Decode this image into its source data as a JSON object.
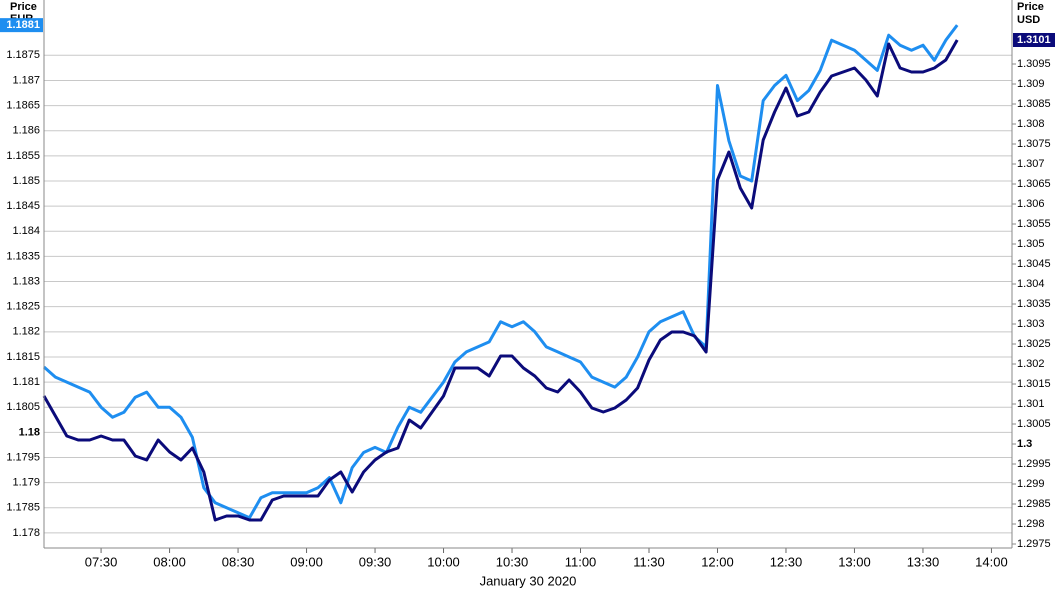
{
  "chart_data": {
    "type": "line",
    "ylabel": "Price",
    "yunit": "EUR",
    "y2label": "Price",
    "y2unit": "USD",
    "xlabel": "January 30 2020",
    "x": [
      "07:05",
      "07:10",
      "07:15",
      "07:20",
      "07:25",
      "07:30",
      "07:35",
      "07:40",
      "07:45",
      "07:50",
      "07:55",
      "08:00",
      "08:05",
      "08:10",
      "08:15",
      "08:20",
      "08:25",
      "08:30",
      "08:35",
      "08:40",
      "08:45",
      "08:50",
      "08:55",
      "09:00",
      "09:05",
      "09:10",
      "09:15",
      "09:20",
      "09:25",
      "09:30",
      "09:35",
      "09:40",
      "09:45",
      "09:50",
      "09:55",
      "10:00",
      "10:05",
      "10:10",
      "10:15",
      "10:20",
      "10:25",
      "10:30",
      "10:35",
      "10:40",
      "10:45",
      "10:50",
      "10:55",
      "11:00",
      "11:05",
      "11:10",
      "11:15",
      "11:20",
      "11:25",
      "11:30",
      "11:35",
      "11:40",
      "11:45",
      "11:50",
      "11:55",
      "12:00",
      "12:05",
      "12:10",
      "12:15",
      "12:20",
      "12:25",
      "12:30",
      "12:35",
      "12:40",
      "12:45",
      "12:50",
      "12:55",
      "13:00",
      "13:05",
      "13:10",
      "13:15",
      "13:20",
      "13:25",
      "13:30",
      "13:35",
      "13:40",
      "13:45"
    ],
    "xlim": [
      "07:05",
      "14:09"
    ],
    "xticks": [
      "07:30",
      "08:00",
      "08:30",
      "09:00",
      "09:30",
      "10:00",
      "10:30",
      "11:00",
      "11:30",
      "12:00",
      "12:30",
      "13:00",
      "13:30",
      "14:00"
    ],
    "series": [
      {
        "color": "#1e8ef0",
        "axis": "y",
        "values": [
          1.1813,
          1.1811,
          1.181,
          1.1809,
          1.1808,
          1.1805,
          1.1803,
          1.1804,
          1.1807,
          1.1808,
          1.1805,
          1.1805,
          1.1803,
          1.1799,
          1.1789,
          1.1786,
          1.1785,
          1.1784,
          1.1783,
          1.1787,
          1.1788,
          1.1788,
          1.1788,
          1.1788,
          1.1789,
          1.1791,
          1.1786,
          1.1793,
          1.1796,
          1.1797,
          1.1796,
          1.1801,
          1.1805,
          1.1804,
          1.1807,
          1.181,
          1.1814,
          1.1816,
          1.1817,
          1.1818,
          1.1822,
          1.1821,
          1.1822,
          1.182,
          1.1817,
          1.1816,
          1.1815,
          1.1814,
          1.1811,
          1.181,
          1.1809,
          1.1811,
          1.1815,
          1.182,
          1.1822,
          1.1823,
          1.1824,
          1.1819,
          1.1817,
          1.1869,
          1.1858,
          1.1851,
          1.185,
          1.1866,
          1.1869,
          1.1871,
          1.1866,
          1.1868,
          1.1872,
          1.1878,
          1.1877,
          1.1876,
          1.1874,
          1.1872,
          1.1879,
          1.1877,
          1.1876,
          1.1877,
          1.1874,
          1.1878,
          1.1881
        ]
      },
      {
        "color": "#0b0b7a",
        "axis": "y2",
        "values": [
          1.3012,
          1.3007,
          1.3002,
          1.3001,
          1.3001,
          1.3002,
          1.3001,
          1.3001,
          1.2997,
          1.2996,
          1.3001,
          1.2998,
          1.2996,
          1.2999,
          1.2993,
          1.2981,
          1.2982,
          1.2982,
          1.2981,
          1.2981,
          1.2986,
          1.2987,
          1.2987,
          1.2987,
          1.2987,
          1.2991,
          1.2993,
          1.2988,
          1.2993,
          1.2996,
          1.2998,
          1.2999,
          1.3006,
          1.3004,
          1.3008,
          1.3012,
          1.3019,
          1.3019,
          1.3019,
          1.3017,
          1.3022,
          1.3022,
          1.3019,
          1.3017,
          1.3014,
          1.3013,
          1.3016,
          1.3013,
          1.3009,
          1.3008,
          1.3009,
          1.3011,
          1.3014,
          1.3021,
          1.3026,
          1.3028,
          1.3028,
          1.3027,
          1.3023,
          1.3066,
          1.3073,
          1.3064,
          1.3059,
          1.3076,
          1.3083,
          1.3089,
          1.3082,
          1.3083,
          1.3088,
          1.3092,
          1.3093,
          1.3094,
          1.3091,
          1.3087,
          1.31,
          1.3094,
          1.3093,
          1.3093,
          1.3094,
          1.3096,
          1.3101
        ]
      }
    ],
    "ylim": [
      1.1777,
      1.1886
    ],
    "yticks": [
      1.178,
      1.1785,
      1.179,
      1.1795,
      1.18,
      1.1805,
      1.181,
      1.1815,
      1.182,
      1.1825,
      1.183,
      1.1835,
      1.184,
      1.1845,
      1.185,
      1.1855,
      1.186,
      1.1865,
      1.187,
      1.1875
    ],
    "y2lim": [
      1.2974,
      1.3111
    ],
    "y2ticks": [
      1.2975,
      1.298,
      1.2985,
      1.299,
      1.2995,
      1.3,
      1.3005,
      1.301,
      1.3015,
      1.302,
      1.3025,
      1.303,
      1.3035,
      1.304,
      1.3045,
      1.305,
      1.3055,
      1.306,
      1.3065,
      1.307,
      1.3075,
      1.308,
      1.3085,
      1.309,
      1.3095
    ],
    "grid": true
  }
}
